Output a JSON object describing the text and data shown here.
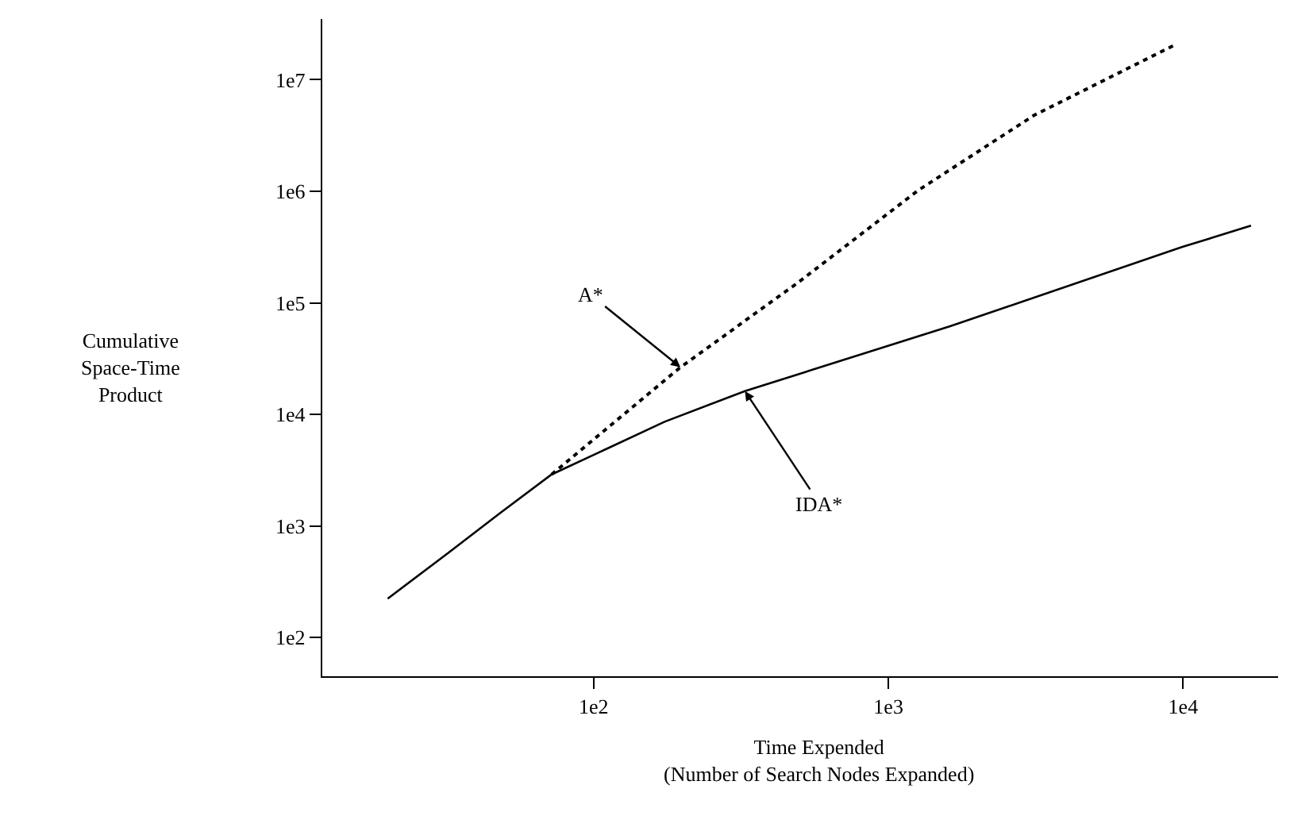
{
  "chart_data": {
    "type": "line",
    "xlabel": "Time Expended\n(Number of Search Nodes Expanded)",
    "ylabel": "Cumulative\nSpace-Time\nProduct",
    "log": "xy",
    "xlim": [
      12,
      21000
    ],
    "ylim": [
      45,
      35000000
    ],
    "xticks": [
      {
        "value": 100,
        "label": "1e2"
      },
      {
        "value": 1000,
        "label": "1e3"
      },
      {
        "value": 10000,
        "label": "1e4"
      }
    ],
    "yticks": [
      {
        "value": 100,
        "label": "1e2"
      },
      {
        "value": 1000,
        "label": "1e3"
      },
      {
        "value": 10000,
        "label": "1e4"
      },
      {
        "value": 100000,
        "label": "1e5"
      },
      {
        "value": 1000000,
        "label": "1e6"
      },
      {
        "value": 10000000,
        "label": "1e7"
      }
    ],
    "series": [
      {
        "color": "#000000",
        "line_style": "dotted",
        "x": [
          72,
          197,
          487,
          1262,
          3120,
          9500
        ],
        "values": [
          2900,
          26500,
          148000,
          1020000,
          4800000,
          20900000
        ]
      },
      {
        "color": "#000000",
        "line_style": "solid",
        "x": [
          20,
          32,
          48,
          72,
          103,
          174,
          326,
          1620,
          9900,
          17000
        ],
        "values": [
          223,
          570,
          1300,
          2900,
          4500,
          8600,
          16200,
          61800,
          316000,
          492000
        ]
      }
    ],
    "annotations": [
      {
        "text": "A*",
        "x": 197,
        "y": 26500
      },
      {
        "text": "IDA*",
        "x": 326,
        "y": 16200
      }
    ]
  }
}
